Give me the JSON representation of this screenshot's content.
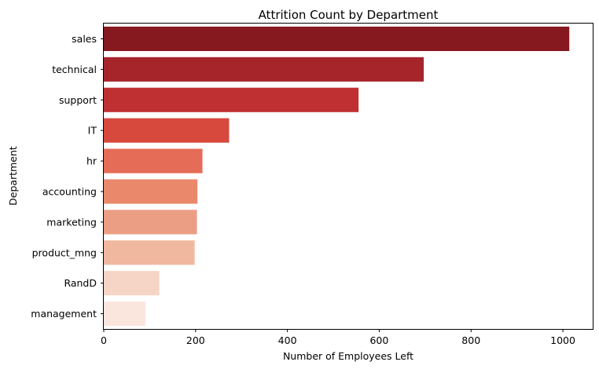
{
  "chart_data": {
    "type": "bar",
    "orientation": "horizontal",
    "title": "Attrition Count by Department",
    "xlabel": "Number of Employees Left",
    "ylabel": "Department",
    "categories": [
      "sales",
      "technical",
      "support",
      "IT",
      "hr",
      "accounting",
      "marketing",
      "product_mng",
      "RandD",
      "management"
    ],
    "values": [
      1014,
      697,
      555,
      273,
      215,
      204,
      203,
      198,
      121,
      91
    ],
    "xlim": [
      0,
      1065
    ],
    "xticks": [
      0,
      200,
      400,
      600,
      800,
      1000
    ],
    "grid": false,
    "legend": "none",
    "colors": [
      "#86181f",
      "#a6252b",
      "#bf3033",
      "#d7483d",
      "#e56c56",
      "#ea886b",
      "#ec9e84",
      "#f1b8a0",
      "#f7d5c6",
      "#fbe6de"
    ]
  }
}
